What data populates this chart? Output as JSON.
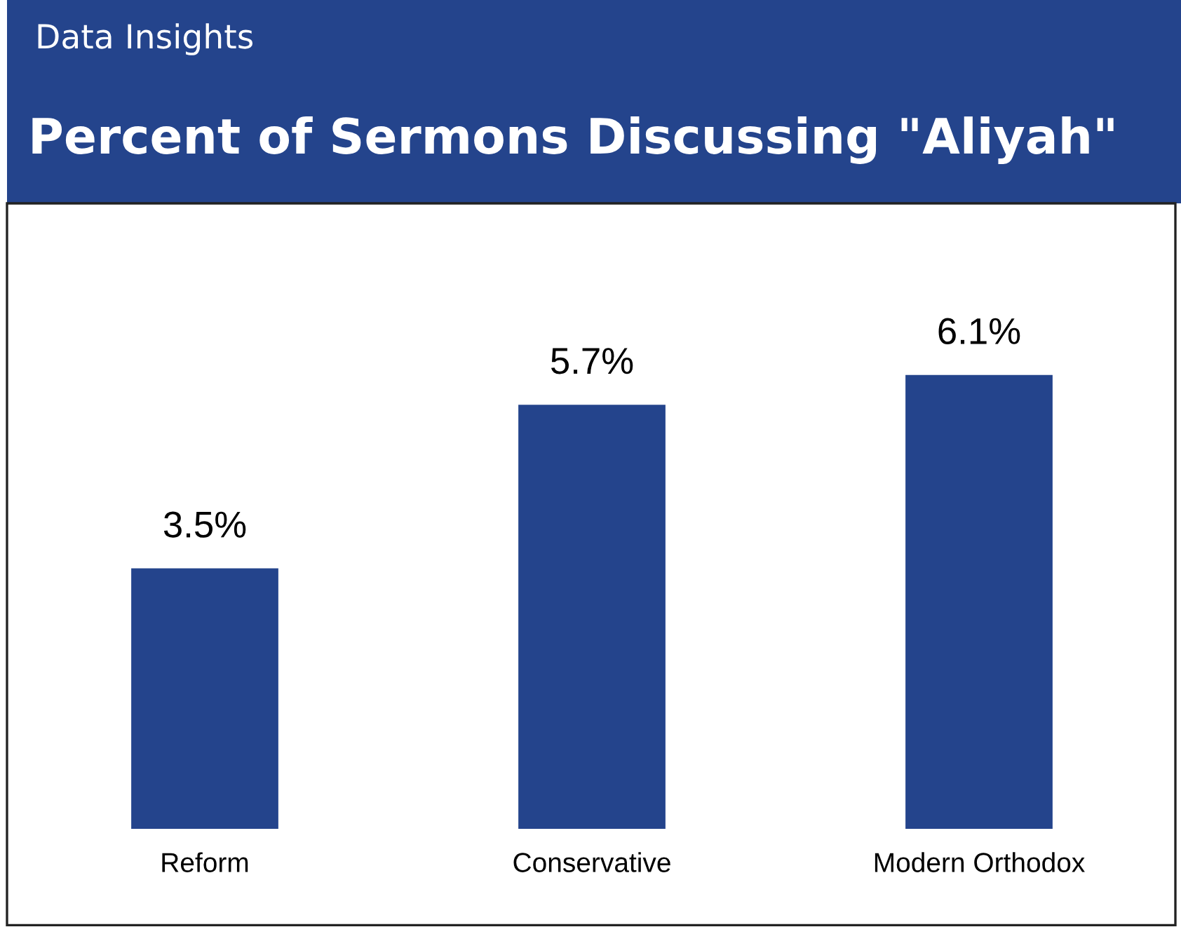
{
  "chart_data": {
    "type": "bar",
    "subtitle": "Data Insights",
    "title": "Percent of Sermons Discussing \"Aliyah\"",
    "categories": [
      "Reform",
      "Conservative",
      "Modern Orthodox"
    ],
    "values": [
      3.5,
      5.7,
      6.1
    ],
    "value_labels": [
      "3.5%",
      "5.7%",
      "6.1%"
    ],
    "color": "#24448c",
    "ylim": [
      0,
      8.35
    ]
  }
}
